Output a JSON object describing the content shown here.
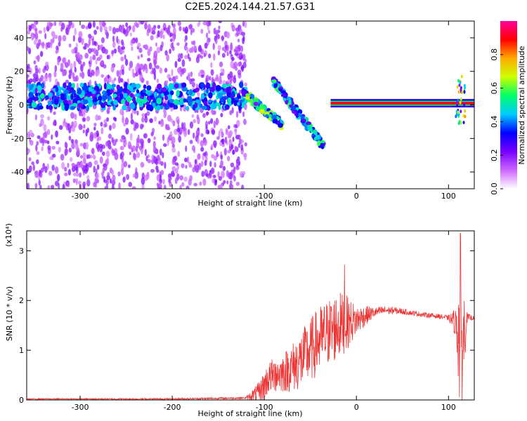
{
  "title": "C2E5.2024.144.21.57.G31",
  "chart_data": [
    {
      "type": "heatmap",
      "xlabel": "Height of straight line (km)",
      "ylabel": "Frequency (Hz)",
      "xlim": [
        -358,
        128
      ],
      "ylim": [
        -50,
        50
      ],
      "x_ticks": [
        -300,
        -200,
        -100,
        0,
        100
      ],
      "y_ticks": [
        -40,
        -20,
        0,
        20,
        40
      ],
      "grid": false,
      "colorbar": {
        "label": "Normalized spectral amplitude",
        "range": [
          0,
          1
        ],
        "ticks": [
          0.0,
          0.2,
          0.4,
          0.6,
          0.8
        ],
        "colors": [
          "#ffffff",
          "#cc66ff",
          "#7700ff",
          "#0000ff",
          "#00ccff",
          "#00ff66",
          "#ccff00",
          "#ffaa00",
          "#ff0000",
          "#ff0099"
        ]
      },
      "features": [
        {
          "name": "noise band",
          "x_range": [
            -358,
            -120
          ],
          "freq_center": 5,
          "amplitude": 0.3
        },
        {
          "name": "transition streak",
          "x_range": [
            -120,
            -80
          ],
          "freq_from": 6,
          "freq_to": -12,
          "amplitude": 0.5
        },
        {
          "name": "chirp",
          "x_range": [
            -90,
            -35
          ],
          "freq_from": 14,
          "freq_to": -25,
          "amplitude": 0.4
        },
        {
          "name": "stable carrier",
          "x_range": [
            -28,
            128
          ],
          "freq_center": 1,
          "amplitude": 0.9
        },
        {
          "name": "spike",
          "x_range": [
            108,
            118
          ],
          "freq_from": 18,
          "freq_to": -12,
          "amplitude": 0.6
        }
      ]
    },
    {
      "type": "line",
      "xlabel": "Height of straight line (km)",
      "ylabel": "SNR (10 * v/v)",
      "y_multiplier": "(x10⁴)",
      "xlim": [
        -358,
        128
      ],
      "ylim": [
        0,
        3.4
      ],
      "x_ticks": [
        -300,
        -200,
        -100,
        0,
        100
      ],
      "y_ticks": [
        0,
        1,
        2,
        3
      ],
      "color": "#ee3333",
      "grid": false,
      "envelope": {
        "x": [
          -358,
          -200,
          -120,
          -105,
          -100,
          -95,
          -90,
          -80,
          -70,
          -60,
          -50,
          -40,
          -30,
          -20,
          -10,
          0,
          10,
          20,
          30,
          40,
          50,
          60,
          70,
          80,
          90,
          100,
          105,
          110,
          112,
          115,
          118,
          120,
          128
        ],
        "y": [
          0.02,
          0.02,
          0.04,
          0.15,
          0.3,
          0.45,
          0.5,
          0.55,
          0.65,
          0.8,
          1.0,
          1.2,
          1.35,
          1.5,
          1.55,
          1.6,
          1.7,
          1.76,
          1.8,
          1.8,
          1.78,
          1.75,
          1.72,
          1.7,
          1.68,
          1.65,
          1.6,
          1.5,
          1.2,
          1.0,
          1.5,
          1.65,
          1.65
        ]
      },
      "jitter_amplitude": {
        "x": [
          -358,
          -120,
          -100,
          -80,
          -60,
          -40,
          -20,
          -10,
          0,
          20,
          60,
          100,
          108,
          112,
          116,
          120,
          128
        ],
        "y": [
          0.01,
          0.02,
          0.3,
          0.4,
          0.6,
          0.7,
          0.7,
          0.55,
          0.3,
          0.1,
          0.05,
          0.05,
          0.3,
          1.5,
          1.2,
          0.1,
          0.03
        ]
      },
      "peaks": [
        {
          "x": -88,
          "y": 0.72
        },
        {
          "x": -30,
          "y": 1.6
        },
        {
          "x": -13,
          "y": 2.72
        },
        {
          "x": 113,
          "y": 3.35
        }
      ]
    }
  ]
}
